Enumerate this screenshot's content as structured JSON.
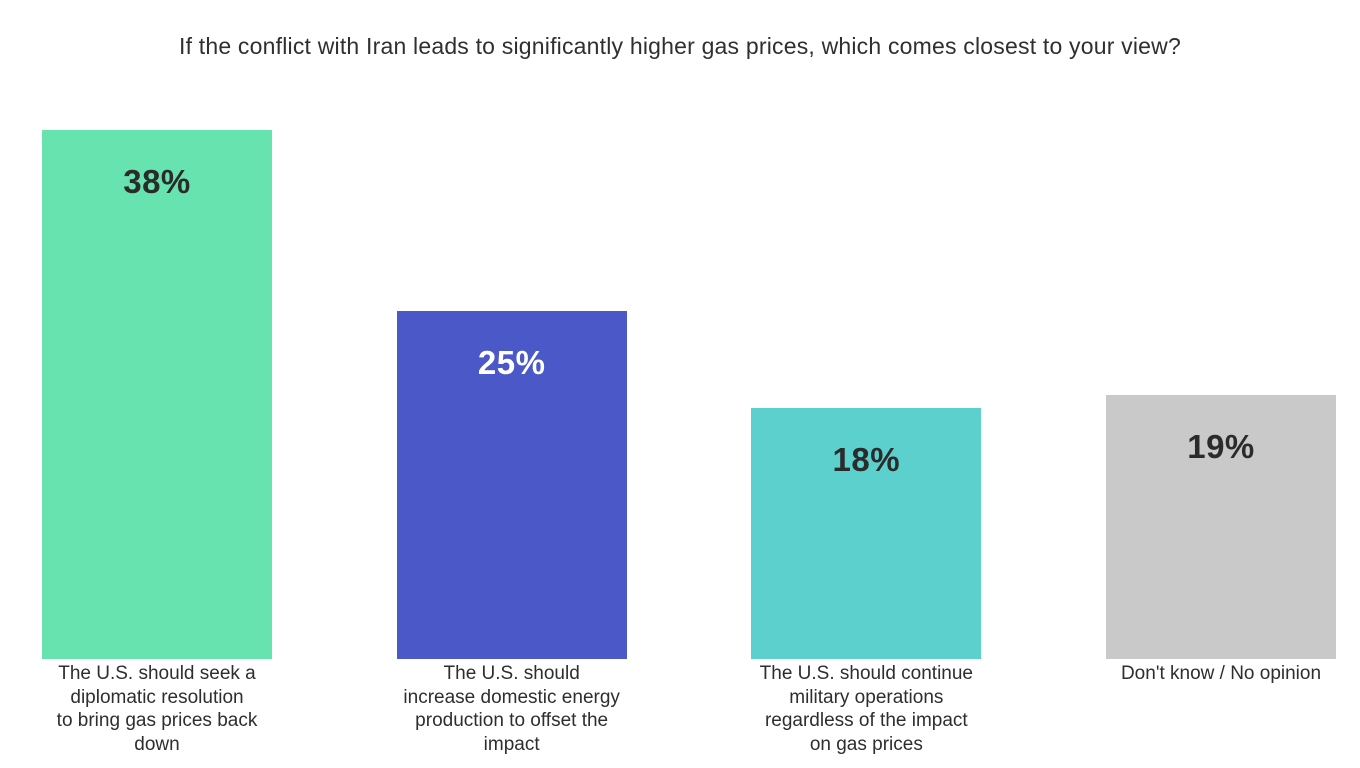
{
  "chart_data": {
    "type": "bar",
    "orientation": "vertical",
    "title": "If the conflict with Iran leads to significantly higher gas prices, which comes closest to your view?",
    "categories": [
      "The U.S. should seek a diplomatic resolution to bring gas prices back down",
      "The U.S. should increase domestic energy production to offset the impact",
      "The U.S. should continue military operations regardless of the impact on gas prices",
      "Don't know / No opinion"
    ],
    "values": [
      38,
      25,
      18,
      19
    ],
    "value_labels": [
      "38%",
      "25%",
      "18%",
      "19%"
    ],
    "unit": "%",
    "bar_colors": [
      "#66e3ae",
      "#4b58c8",
      "#5cd0cc",
      "#c9c9c9"
    ],
    "value_label_colors": [
      "#2b2b2b",
      "#ffffff",
      "#2b2b2b",
      "#2b2b2b"
    ],
    "tick_label_lines": [
      [
        "The U.S. should seek a",
        "diplomatic resolution",
        "to bring gas prices back",
        "down"
      ],
      [
        "The U.S. should",
        "increase domestic energy",
        "production to offset the",
        "impact"
      ],
      [
        "The U.S. should continue",
        "military operations",
        "regardless of the impact",
        "on gas prices"
      ],
      [
        "Don't know / No opinion"
      ]
    ],
    "xlabel": "",
    "ylabel": "",
    "ylim": [
      0,
      38
    ],
    "grid": false,
    "legend": "none",
    "axes_visible": false,
    "value_label_position": "inside-top"
  }
}
